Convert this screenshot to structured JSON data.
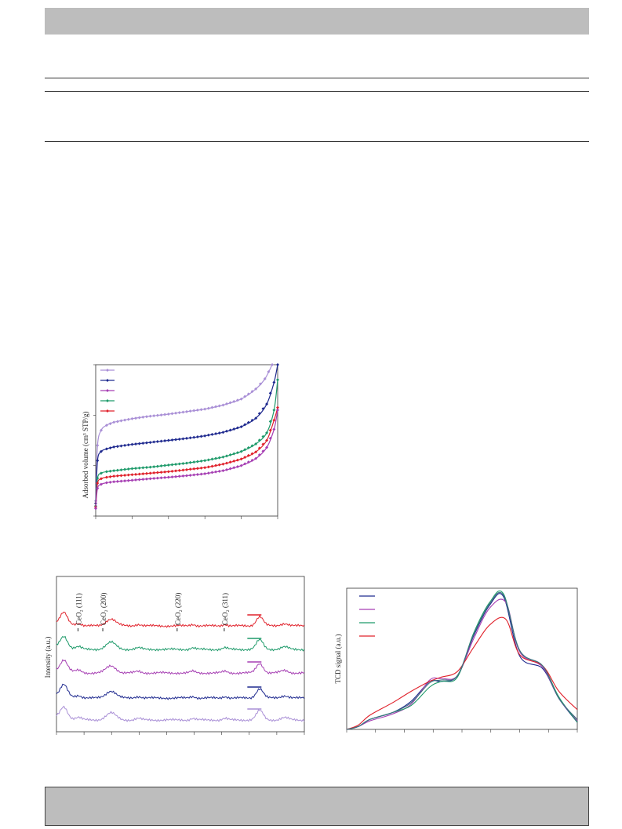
{
  "colors": {
    "header_fill": "#bdbdbd",
    "series_lavender": "#a98fd6",
    "series_navy": "#1f2a8f",
    "series_magenta": "#a63fb3",
    "series_green": "#1e9a6a",
    "series_red": "#e0202a",
    "series_slate": "#3f6f80"
  },
  "chart_data": [
    {
      "type": "line",
      "title": "",
      "xlabel": "",
      "ylabel": "Adsorbed volume (cm³ STP/g)",
      "x_range": [
        0,
        1
      ],
      "y_range": [
        0,
        300
      ],
      "grid": false,
      "legend_position": "top-left",
      "marker": "diamond",
      "series": [
        {
          "color": "#a98fd6",
          "values": [
            [
              0.0,
              30
            ],
            [
              0.01,
              140
            ],
            [
              0.03,
              170
            ],
            [
              0.06,
              180
            ],
            [
              0.1,
              186
            ],
            [
              0.2,
              193
            ],
            [
              0.3,
              198
            ],
            [
              0.4,
              202
            ],
            [
              0.5,
              207
            ],
            [
              0.6,
              212
            ],
            [
              0.7,
              220
            ],
            [
              0.8,
              232
            ],
            [
              0.88,
              252
            ],
            [
              0.93,
              272
            ],
            [
              0.97,
              300
            ]
          ]
        },
        {
          "color": "#1f2a8f",
          "values": [
            [
              0.0,
              25
            ],
            [
              0.01,
              110
            ],
            [
              0.03,
              128
            ],
            [
              0.06,
              133
            ],
            [
              0.1,
              137
            ],
            [
              0.2,
              142
            ],
            [
              0.3,
              146
            ],
            [
              0.4,
              150
            ],
            [
              0.5,
              154
            ],
            [
              0.6,
              159
            ],
            [
              0.7,
              166
            ],
            [
              0.8,
              177
            ],
            [
              0.88,
              194
            ],
            [
              0.94,
              222
            ],
            [
              0.98,
              265
            ],
            [
              1.0,
              300
            ]
          ]
        },
        {
          "color": "#1e9a6a",
          "values": [
            [
              0.0,
              20
            ],
            [
              0.01,
              75
            ],
            [
              0.03,
              85
            ],
            [
              0.06,
              88
            ],
            [
              0.1,
              90
            ],
            [
              0.2,
              94
            ],
            [
              0.3,
              97
            ],
            [
              0.4,
              101
            ],
            [
              0.5,
              105
            ],
            [
              0.6,
              110
            ],
            [
              0.7,
              117
            ],
            [
              0.8,
              128
            ],
            [
              0.88,
              143
            ],
            [
              0.94,
              165
            ],
            [
              0.98,
              210
            ],
            [
              1.0,
              270
            ]
          ]
        },
        {
          "color": "#e0202a",
          "values": [
            [
              0.0,
              18
            ],
            [
              0.01,
              65
            ],
            [
              0.03,
              74
            ],
            [
              0.06,
              77
            ],
            [
              0.1,
              79
            ],
            [
              0.2,
              82
            ],
            [
              0.3,
              85
            ],
            [
              0.4,
              88
            ],
            [
              0.5,
              92
            ],
            [
              0.6,
              96
            ],
            [
              0.7,
              103
            ],
            [
              0.8,
              113
            ],
            [
              0.88,
              127
            ],
            [
              0.94,
              150
            ],
            [
              0.98,
              190
            ],
            [
              1.0,
              215
            ]
          ]
        },
        {
          "color": "#a63fb3",
          "values": [
            [
              0.0,
              15
            ],
            [
              0.01,
              55
            ],
            [
              0.03,
              63
            ],
            [
              0.06,
              66
            ],
            [
              0.1,
              68
            ],
            [
              0.2,
              71
            ],
            [
              0.3,
              74
            ],
            [
              0.4,
              77
            ],
            [
              0.5,
              80
            ],
            [
              0.6,
              84
            ],
            [
              0.7,
              90
            ],
            [
              0.8,
              100
            ],
            [
              0.88,
              114
            ],
            [
              0.94,
              136
            ],
            [
              0.98,
              172
            ],
            [
              1.0,
              210
            ]
          ]
        }
      ]
    },
    {
      "type": "line",
      "title": "",
      "xlabel": "",
      "ylabel": "Intensity (a.u.)",
      "x_range": [
        0,
        100
      ],
      "grid": false,
      "legend_position": "right",
      "annotations": [
        {
          "text": "CeO₂ (111)",
          "x": 9
        },
        {
          "text": "CeO₂ (200)",
          "x": 19
        },
        {
          "text": "CeO₂ (220)",
          "x": 49
        },
        {
          "text": "CeO₂ (311)",
          "x": 68
        }
      ],
      "series": [
        {
          "color": "#e0202a",
          "offset": 4
        },
        {
          "color": "#1e9a6a",
          "offset": 3
        },
        {
          "color": "#a63fb3",
          "offset": 2
        },
        {
          "color": "#1f2a8f",
          "offset": 1
        },
        {
          "color": "#a98fd6",
          "offset": 0
        }
      ]
    },
    {
      "type": "line",
      "title": "",
      "xlabel": "",
      "ylabel": "TCD signal (a.u.)",
      "x_range": [
        0,
        100
      ],
      "y_range": [
        0,
        100
      ],
      "grid": false,
      "legend_position": "top-left",
      "series": [
        {
          "color": "#1f2a8f",
          "values": [
            [
              0,
              0
            ],
            [
              5,
              2
            ],
            [
              10,
              7
            ],
            [
              20,
              12
            ],
            [
              28,
              20
            ],
            [
              36,
              34
            ],
            [
              41,
              34
            ],
            [
              48,
              38
            ],
            [
              55,
              66
            ],
            [
              62,
              88
            ],
            [
              68,
              94
            ],
            [
              75,
              52
            ],
            [
              85,
              43
            ],
            [
              92,
              22
            ],
            [
              100,
              5
            ]
          ]
        },
        {
          "color": "#a63fb3",
          "values": [
            [
              0,
              0
            ],
            [
              5,
              2
            ],
            [
              10,
              6
            ],
            [
              20,
              11
            ],
            [
              28,
              18
            ],
            [
              36,
              35
            ],
            [
              41,
              36
            ],
            [
              48,
              38
            ],
            [
              55,
              64
            ],
            [
              62,
              86
            ],
            [
              69,
              90
            ],
            [
              75,
              55
            ],
            [
              85,
              44
            ],
            [
              92,
              22
            ],
            [
              100,
              6
            ]
          ]
        },
        {
          "color": "#1e9a6a",
          "values": [
            [
              0,
              0
            ],
            [
              5,
              2
            ],
            [
              10,
              7
            ],
            [
              20,
              12
            ],
            [
              28,
              17
            ],
            [
              36,
              30
            ],
            [
              41,
              34
            ],
            [
              48,
              37
            ],
            [
              55,
              68
            ],
            [
              62,
              90
            ],
            [
              68,
              96
            ],
            [
              75,
              56
            ],
            [
              85,
              45
            ],
            [
              92,
              23
            ],
            [
              100,
              5
            ]
          ]
        },
        {
          "color": "#e0202a",
          "values": [
            [
              0,
              0
            ],
            [
              5,
              3
            ],
            [
              10,
              10
            ],
            [
              20,
              19
            ],
            [
              28,
              27
            ],
            [
              36,
              34
            ],
            [
              41,
              37
            ],
            [
              48,
              41
            ],
            [
              55,
              58
            ],
            [
              62,
              74
            ],
            [
              69,
              78
            ],
            [
              75,
              53
            ],
            [
              85,
              45
            ],
            [
              92,
              27
            ],
            [
              100,
              14
            ]
          ]
        },
        {
          "color": "#3f6f80",
          "values": [
            [
              0,
              0
            ],
            [
              5,
              2
            ],
            [
              10,
              7
            ],
            [
              20,
              12
            ],
            [
              28,
              19
            ],
            [
              36,
              33
            ],
            [
              41,
              35
            ],
            [
              48,
              38
            ],
            [
              55,
              67
            ],
            [
              62,
              89
            ],
            [
              68,
              95
            ],
            [
              75,
              56
            ],
            [
              85,
              45
            ],
            [
              92,
              22
            ],
            [
              100,
              7
            ]
          ]
        }
      ]
    }
  ]
}
